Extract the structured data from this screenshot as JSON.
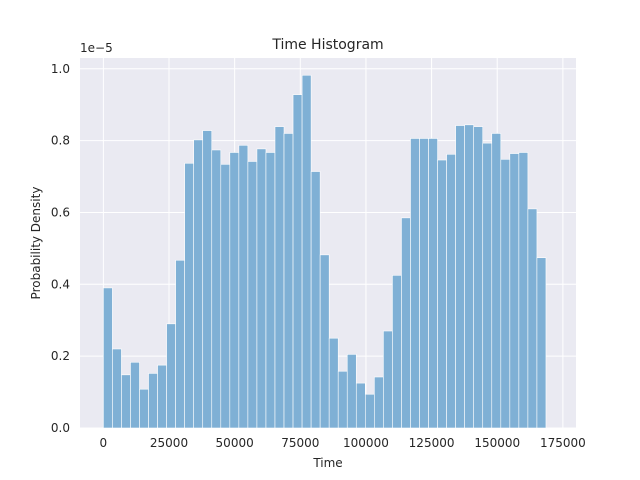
{
  "chart_data": {
    "type": "bar",
    "title": "Time Histogram",
    "xlabel": "Time",
    "ylabel": "Probability Density",
    "y_multiplier_label": "1e−5",
    "xlim": [
      -8900,
      180000
    ],
    "ylim": [
      0,
      1.03
    ],
    "x_ticks": [
      0,
      25000,
      50000,
      75000,
      100000,
      125000,
      150000,
      175000
    ],
    "y_ticks": [
      0.0,
      0.2,
      0.4,
      0.6,
      0.8,
      1.0
    ],
    "x_tick_labels": [
      "0",
      "25000",
      "50000",
      "75000",
      "100000",
      "125000",
      "150000",
      "175000"
    ],
    "y_tick_labels": [
      "0.0",
      "0.2",
      "0.4",
      "0.6",
      "0.8",
      "1.0"
    ],
    "grid": true,
    "bin_start": 0,
    "bin_width": 3440,
    "values": [
      0.39,
      0.22,
      0.148,
      0.183,
      0.108,
      0.152,
      0.175,
      0.29,
      0.467,
      0.737,
      0.802,
      0.828,
      0.774,
      0.734,
      0.767,
      0.787,
      0.742,
      0.777,
      0.767,
      0.839,
      0.82,
      0.928,
      0.982,
      0.714,
      0.482,
      0.25,
      0.158,
      0.205,
      0.125,
      0.094,
      0.142,
      0.27,
      0.425,
      0.585,
      0.806,
      0.806,
      0.806,
      0.746,
      0.762,
      0.842,
      0.844,
      0.839,
      0.793,
      0.82,
      0.748,
      0.764,
      0.767,
      0.61,
      0.474
    ],
    "bar_color": "#7fb0d5",
    "background_color": "#eaeaf2"
  }
}
